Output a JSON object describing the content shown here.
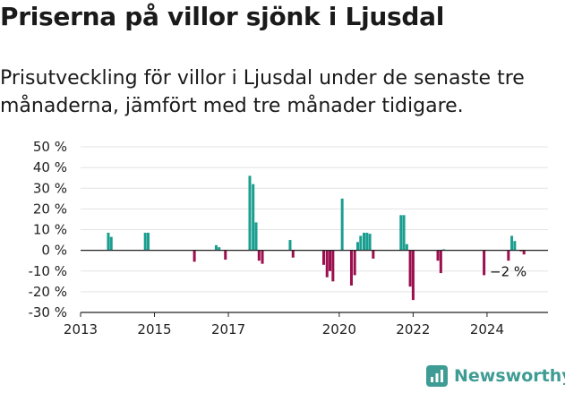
{
  "header": {
    "title": "Priserna på villor sjönk i Ljusdal",
    "subtitle": "Prisutveckling för villor i Ljusdal under de senaste tre månaderna, jämfört med tre månader tidigare."
  },
  "brand": {
    "name": "Newsworthy",
    "icon": "newsworthy-logo-icon",
    "color": "#3f9c94"
  },
  "colors": {
    "positive": "#1a9e8f",
    "negative": "#9b0f4e"
  },
  "chart_data": {
    "type": "bar",
    "title": "Priserna på villor sjönk i Ljusdal",
    "subtitle": "Prisutveckling för villor i Ljusdal under de senaste tre månaderna, jämfört med tre månader tidigare.",
    "xlabel": "",
    "ylabel": "",
    "ylim": [
      -30,
      50
    ],
    "xlim": [
      2013,
      2025.65
    ],
    "y_ticks": [
      50,
      40,
      30,
      20,
      10,
      0,
      -10,
      -20,
      -30
    ],
    "y_tick_labels": [
      "50 %",
      "40 %",
      "30 %",
      "20 %",
      "10 %",
      "0 %",
      "-10 %",
      "-20 %",
      "-30 %"
    ],
    "x_ticks": [
      2013,
      2015,
      2017,
      2020,
      2022,
      2024
    ],
    "x_tick_labels": [
      "2013",
      "2015",
      "2017",
      "2020",
      "2022",
      "2024"
    ],
    "grid": "horizontal",
    "last_value_label": "−2 %",
    "x": [
      2013.75,
      2013.83,
      2014.75,
      2014.83,
      2016.08,
      2016.67,
      2016.75,
      2016.92,
      2017.58,
      2017.67,
      2017.75,
      2017.83,
      2017.92,
      2018.67,
      2018.75,
      2019.58,
      2019.67,
      2019.75,
      2019.83,
      2020.08,
      2020.33,
      2020.42,
      2020.5,
      2020.58,
      2020.67,
      2020.75,
      2020.83,
      2020.92,
      2021.67,
      2021.75,
      2021.83,
      2021.92,
      2022.0,
      2022.67,
      2022.75,
      2022.83,
      2023.92,
      2024.58,
      2024.67,
      2024.75,
      2024.92,
      2025.0
    ],
    "values": [
      8.5,
      6.5,
      8.5,
      8.5,
      -5.5,
      2.5,
      1.5,
      -4.5,
      36,
      32,
      13.5,
      -5,
      -6.5,
      5,
      -3.5,
      -7,
      -13,
      -10,
      -15,
      25,
      -17,
      -12,
      4,
      7,
      8.5,
      8.5,
      8,
      -4,
      17,
      17,
      3,
      -17.5,
      -24,
      -5,
      -11,
      0.5,
      -12,
      -5,
      7,
      4.5,
      -0.5,
      -2
    ]
  }
}
